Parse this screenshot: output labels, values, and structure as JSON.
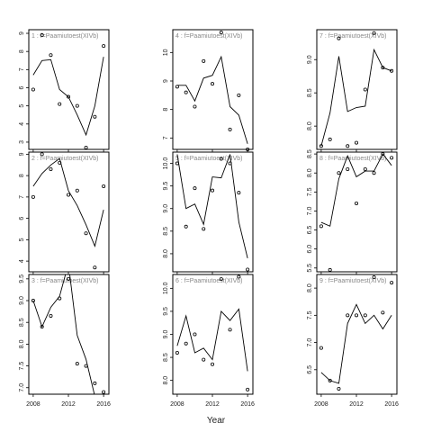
{
  "figure": {
    "xlabel": "Year"
  },
  "chart_data": [
    {
      "type": "scatter",
      "strip": "1 : f=Paamiutoest(XIVb)",
      "x_ticks": [
        2008,
        2012,
        2016
      ],
      "y_ticks": [
        3,
        4,
        5,
        6,
        7,
        8,
        9
      ],
      "ylim": [
        2.6,
        9.2
      ],
      "xlim": [
        2007.5,
        2016.6
      ],
      "points": [
        [
          2008,
          5.9
        ],
        [
          2009,
          8.9
        ],
        [
          2010,
          7.8
        ],
        [
          2011,
          5.1
        ],
        [
          2012,
          5.5
        ],
        [
          2013,
          5.0
        ],
        [
          2014,
          2.7
        ],
        [
          2015,
          4.4
        ],
        [
          2016,
          8.3
        ]
      ],
      "fit": [
        [
          2008,
          6.7
        ],
        [
          2009,
          7.5
        ],
        [
          2010,
          7.55
        ],
        [
          2011,
          5.9
        ],
        [
          2012,
          5.5
        ],
        [
          2013,
          4.5
        ],
        [
          2014,
          3.4
        ],
        [
          2015,
          5.0
        ],
        [
          2016,
          7.7
        ]
      ]
    },
    {
      "type": "scatter",
      "strip": "4 : f=Paamiutoest(XIVb)",
      "x_ticks": [
        2008,
        2012,
        2016
      ],
      "y_ticks": [
        7,
        8,
        9,
        10
      ],
      "ylim": [
        6.6,
        10.8
      ],
      "xlim": [
        2007.5,
        2016.6
      ],
      "points": [
        [
          2008,
          8.8
        ],
        [
          2009,
          8.6
        ],
        [
          2010,
          8.1
        ],
        [
          2011,
          9.7
        ],
        [
          2012,
          8.9
        ],
        [
          2013,
          10.7
        ],
        [
          2014,
          7.3
        ],
        [
          2015,
          8.5
        ],
        [
          2016,
          6.6
        ]
      ],
      "fit": [
        [
          2008,
          8.85
        ],
        [
          2009,
          8.85
        ],
        [
          2010,
          8.3
        ],
        [
          2011,
          9.1
        ],
        [
          2012,
          9.2
        ],
        [
          2013,
          9.85
        ],
        [
          2014,
          8.1
        ],
        [
          2015,
          7.8
        ],
        [
          2016,
          6.8
        ]
      ]
    },
    {
      "type": "scatter",
      "strip": "7 : f=Paamiutoest(XIVb)",
      "x_ticks": [
        2008,
        2012,
        2016
      ],
      "y_ticks": [
        8.0,
        8.5,
        9.0
      ],
      "ylim": [
        7.65,
        9.45
      ],
      "xlim": [
        2007.5,
        2016.6
      ],
      "points": [
        [
          2008,
          7.7
        ],
        [
          2009,
          7.8
        ],
        [
          2010,
          9.32
        ],
        [
          2011,
          7.7
        ],
        [
          2012,
          7.75
        ],
        [
          2013,
          8.55
        ],
        [
          2014,
          9.4
        ],
        [
          2015,
          8.88
        ],
        [
          2016,
          8.83
        ]
      ],
      "fit": [
        [
          2008,
          7.7
        ],
        [
          2009,
          8.2
        ],
        [
          2010,
          9.05
        ],
        [
          2011,
          8.22
        ],
        [
          2012,
          8.28
        ],
        [
          2013,
          8.3
        ],
        [
          2014,
          9.15
        ],
        [
          2015,
          8.88
        ],
        [
          2016,
          8.83
        ]
      ]
    },
    {
      "type": "scatter",
      "strip": "2 : f=Paamiutoest(XIVb)",
      "x_ticks": [
        2008,
        2012,
        2016
      ],
      "y_ticks": [
        4,
        5,
        6,
        7,
        8,
        9
      ],
      "ylim": [
        3.5,
        9.1
      ],
      "xlim": [
        2007.5,
        2016.6
      ],
      "points": [
        [
          2008,
          7.0
        ],
        [
          2009,
          9.0
        ],
        [
          2010,
          8.3
        ],
        [
          2011,
          8.6
        ],
        [
          2012,
          7.1
        ],
        [
          2013,
          7.3
        ],
        [
          2014,
          5.3
        ],
        [
          2015,
          3.7
        ],
        [
          2016,
          7.5
        ]
      ],
      "fit": [
        [
          2008,
          7.5
        ],
        [
          2009,
          8.1
        ],
        [
          2010,
          8.5
        ],
        [
          2011,
          8.8
        ],
        [
          2012,
          7.3
        ],
        [
          2013,
          6.6
        ],
        [
          2014,
          5.7
        ],
        [
          2015,
          4.7
        ],
        [
          2016,
          6.4
        ]
      ]
    },
    {
      "type": "scatter",
      "strip": "5 : f=Paamiutoest(XIVb)",
      "x_ticks": [
        2008,
        2012,
        2016
      ],
      "y_ticks": [
        8.0,
        8.5,
        9.0,
        9.5,
        10.0
      ],
      "ylim": [
        7.6,
        10.25
      ],
      "xlim": [
        2007.5,
        2016.6
      ],
      "points": [
        [
          2008,
          10.0
        ],
        [
          2009,
          8.6
        ],
        [
          2010,
          9.45
        ],
        [
          2011,
          8.55
        ],
        [
          2012,
          9.4
        ],
        [
          2013,
          10.1
        ],
        [
          2014,
          10.0
        ],
        [
          2015,
          9.35
        ],
        [
          2016,
          7.65
        ]
      ],
      "fit": [
        [
          2008,
          10.2
        ],
        [
          2009,
          9.0
        ],
        [
          2010,
          9.1
        ],
        [
          2011,
          8.65
        ],
        [
          2012,
          9.7
        ],
        [
          2013,
          9.68
        ],
        [
          2014,
          10.2
        ],
        [
          2015,
          8.7
        ],
        [
          2016,
          7.9
        ]
      ]
    },
    {
      "type": "scatter",
      "strip": "8 : f=Paamiutoest(XIVb)",
      "x_ticks": [
        2008,
        2012,
        2016
      ],
      "y_ticks": [
        5.5,
        6.0,
        6.5,
        7.0,
        7.5,
        8.0,
        8.5
      ],
      "ylim": [
        5.4,
        8.55
      ],
      "xlim": [
        2007.5,
        2016.6
      ],
      "points": [
        [
          2008,
          6.6
        ],
        [
          2009,
          5.45
        ],
        [
          2010,
          8.0
        ],
        [
          2011,
          8.1
        ],
        [
          2012,
          7.2
        ],
        [
          2013,
          8.1
        ],
        [
          2014,
          8.0
        ],
        [
          2015,
          8.5
        ],
        [
          2016,
          8.4
        ]
      ],
      "fit": [
        [
          2008,
          6.7
        ],
        [
          2009,
          6.6
        ],
        [
          2010,
          7.85
        ],
        [
          2011,
          8.45
        ],
        [
          2012,
          7.9
        ],
        [
          2013,
          8.05
        ],
        [
          2014,
          8.05
        ],
        [
          2015,
          8.5
        ],
        [
          2016,
          8.2
        ]
      ]
    },
    {
      "type": "scatter",
      "strip": "3 : f=Paamiutoest(XIVb)",
      "x_ticks": [
        2008,
        2012,
        2016
      ],
      "y_ticks": [
        7.0,
        7.5,
        8.0,
        8.5,
        9.0,
        9.5
      ],
      "ylim": [
        6.85,
        9.6
      ],
      "xlim": [
        2007.5,
        2016.6
      ],
      "points": [
        [
          2008,
          9.0
        ],
        [
          2009,
          8.4
        ],
        [
          2010,
          8.65
        ],
        [
          2011,
          9.05
        ],
        [
          2012,
          9.5
        ],
        [
          2013,
          7.55
        ],
        [
          2014,
          7.5
        ],
        [
          2015,
          7.1
        ],
        [
          2016,
          6.9
        ]
      ],
      "fit": [
        [
          2008,
          9.0
        ],
        [
          2009,
          8.4
        ],
        [
          2010,
          8.85
        ],
        [
          2011,
          9.1
        ],
        [
          2012,
          9.85
        ],
        [
          2013,
          8.2
        ],
        [
          2014,
          7.65
        ],
        [
          2015,
          6.8
        ],
        [
          2016,
          6.8
        ]
      ]
    },
    {
      "type": "scatter",
      "strip": "6 : f=Paamiutoest(XIVb)",
      "x_ticks": [
        2008,
        2012,
        2016
      ],
      "y_ticks": [
        8.0,
        8.5,
        9.0,
        9.5,
        10.0
      ],
      "ylim": [
        7.7,
        10.3
      ],
      "xlim": [
        2007.5,
        2016.6
      ],
      "points": [
        [
          2008,
          8.6
        ],
        [
          2009,
          8.8
        ],
        [
          2010,
          9.0
        ],
        [
          2011,
          8.45
        ],
        [
          2012,
          8.35
        ],
        [
          2013,
          10.2
        ],
        [
          2014,
          9.1
        ],
        [
          2015,
          10.25
        ],
        [
          2016,
          7.8
        ]
      ],
      "fit": [
        [
          2008,
          8.75
        ],
        [
          2009,
          9.4
        ],
        [
          2010,
          8.6
        ],
        [
          2011,
          8.7
        ],
        [
          2012,
          8.45
        ],
        [
          2013,
          9.5
        ],
        [
          2014,
          9.3
        ],
        [
          2015,
          9.55
        ],
        [
          2016,
          8.2
        ]
      ]
    },
    {
      "type": "scatter",
      "strip": "9 : f=Paamiutoest(XIVb)",
      "x_ticks": [
        2008,
        2012,
        2016
      ],
      "y_ticks": [
        6.5,
        7.0,
        7.5,
        8.0
      ],
      "ylim": [
        6.05,
        8.25
      ],
      "xlim": [
        2007.5,
        2016.6
      ],
      "points": [
        [
          2008,
          6.9
        ],
        [
          2009,
          6.3
        ],
        [
          2010,
          6.15
        ],
        [
          2011,
          7.5
        ],
        [
          2012,
          7.5
        ],
        [
          2013,
          7.5
        ],
        [
          2014,
          8.2
        ],
        [
          2015,
          7.55
        ],
        [
          2016,
          8.1
        ]
      ],
      "fit": [
        [
          2008,
          6.45
        ],
        [
          2009,
          6.3
        ],
        [
          2010,
          6.25
        ],
        [
          2011,
          7.35
        ],
        [
          2012,
          7.7
        ],
        [
          2013,
          7.35
        ],
        [
          2014,
          7.5
        ],
        [
          2015,
          7.25
        ],
        [
          2016,
          7.5
        ]
      ]
    }
  ]
}
